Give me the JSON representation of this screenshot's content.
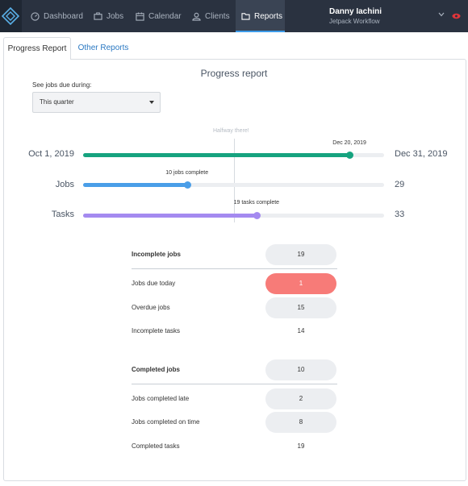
{
  "nav": {
    "items": [
      {
        "label": "Dashboard",
        "icon": "dashboard-icon"
      },
      {
        "label": "Jobs",
        "icon": "briefcase-icon"
      },
      {
        "label": "Calendar",
        "icon": "calendar-icon"
      },
      {
        "label": "Clients",
        "icon": "user-icon"
      },
      {
        "label": "Reports",
        "icon": "folder-icon"
      }
    ],
    "user_name": "Danny Iachini",
    "user_org": "Jetpack Workflow",
    "accent": "#3d9be9"
  },
  "tabs": {
    "progress": "Progress Report",
    "other": "Other Reports"
  },
  "report": {
    "title": "Progress report",
    "filter_label": "See jobs due during:",
    "filter_value": "This quarter",
    "halfway": "Halfway there!",
    "start_date": "Oct 1, 2019",
    "end_date": "Dec 31, 2019",
    "current_date": "Dec 20, 2019",
    "date_progress": 0.885,
    "jobs_label": "Jobs",
    "jobs_total": "29",
    "jobs_complete_text": "10 jobs complete",
    "jobs_progress": 0.345,
    "tasks_label": "Tasks",
    "tasks_total": "33",
    "tasks_complete_text": "19 tasks complete",
    "tasks_progress": 0.576,
    "colors": {
      "date": "#16a37f",
      "jobs": "#4a9ee8",
      "tasks": "#a48af0"
    }
  },
  "incomplete": {
    "header": {
      "label": "Incomplete jobs",
      "value": "19"
    },
    "rows": [
      {
        "label": "Jobs due today",
        "value": "1"
      },
      {
        "label": "Overdue jobs",
        "value": "15"
      },
      {
        "label": "Incomplete tasks",
        "value": "14"
      }
    ]
  },
  "completed": {
    "header": {
      "label": "Completed jobs",
      "value": "10"
    },
    "rows": [
      {
        "label": "Jobs completed late",
        "value": "2"
      },
      {
        "label": "Jobs completed on time",
        "value": "8"
      },
      {
        "label": "Completed tasks",
        "value": "19"
      }
    ]
  }
}
